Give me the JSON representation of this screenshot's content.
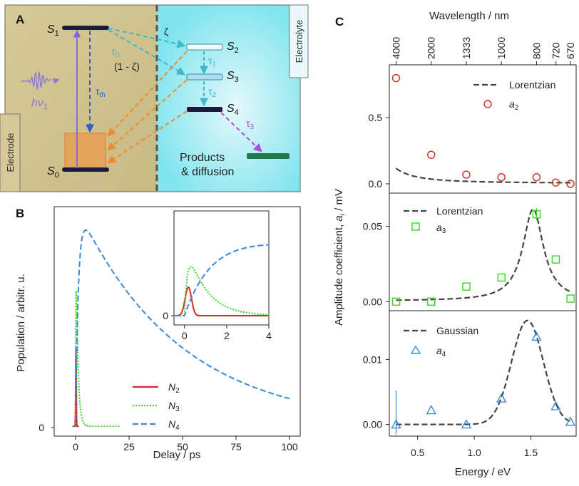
{
  "panels": {
    "a": {
      "label": "A",
      "electrode": "Electrode",
      "electrolyte": "Electrolyte",
      "states": {
        "s0": "S",
        "s0_sub": "0",
        "s1": "S",
        "s1_sub": "1",
        "s2": "S",
        "s2_sub": "2",
        "s3": "S",
        "s3_sub": "3",
        "s4": "S",
        "s4_sub": "4"
      },
      "rates": {
        "zeta": "ζ",
        "tau0": "τ",
        "tau0_sub": "0",
        "one_minus_zeta": "(1 - ζ)",
        "tau1": "τ",
        "tau1_sub": "1",
        "tau2": "τ",
        "tau2_sub": "2",
        "tau3": "τ",
        "tau3_sub": "3",
        "tau_th": "τ",
        "tau_th_sub": "th"
      },
      "photon": "hν",
      "photon_sub": "1",
      "products_line1": "Products",
      "products_line2": "& diffusion",
      "colors": {
        "electrode_bg": "#d8c998",
        "electrolyte_bg": "#7fe4ee",
        "level": "#1a1a3a",
        "s4_product": "#1e7a4a",
        "orange": "#f08a2a",
        "cyan": "#3fb8c8",
        "blue": "#2d5fd0",
        "purple": "#b04ad8",
        "pulse": "#8a7ad8"
      }
    },
    "b": {
      "label": "B",
      "xlabel": "Delay / ps",
      "ylabel": "Population / arbitr. u.",
      "xticks": [
        "0",
        "25",
        "50",
        "75",
        "100"
      ],
      "ytick_zero": "0",
      "inset_xticks": [
        "0",
        "2",
        "4"
      ],
      "inset_ytick_zero": "0",
      "legend": [
        {
          "name": "N",
          "sub": "2"
        },
        {
          "name": "N",
          "sub": "3"
        },
        {
          "name": "N",
          "sub": "4"
        }
      ]
    },
    "c": {
      "label": "C",
      "top_axis_label": "Wavelength / nm",
      "top_ticks": [
        "4000",
        "2000",
        "1333",
        "1000",
        "800",
        "720",
        "670"
      ],
      "xlabel": "Energy / eV",
      "ylabel_prefix": "Amplitude coefficient, ",
      "ylabel_var": "a",
      "ylabel_sub": "i",
      "ylabel_suffix": " / mV",
      "xticks": [
        "0.5",
        "1.0",
        "1.5"
      ],
      "sub_panels": [
        {
          "fit_label": "Lorentzian",
          "marker_label": "a",
          "marker_sub": "2",
          "yticks": [
            "0.0",
            "0.5"
          ]
        },
        {
          "fit_label": "Lorentzian",
          "marker_label": "a",
          "marker_sub": "3",
          "yticks": [
            "0.00",
            "0.05"
          ]
        },
        {
          "fit_label": "Gaussian",
          "marker_label": "a",
          "marker_sub": "4",
          "yticks": [
            "0.00",
            "0.01"
          ]
        }
      ]
    }
  },
  "chart_data": [
    {
      "type": "line",
      "title": "B",
      "xlabel": "Delay / ps",
      "ylabel": "Population / arbitr. u.",
      "xlim": [
        -10,
        105
      ],
      "ylim": [
        -0.05,
        1.12
      ],
      "series": [
        {
          "name": "N2",
          "color": "#d42a1e",
          "style": "solid",
          "model": "gaussian",
          "amplitude": 0.4,
          "center": 0.18,
          "sigma": 0.15
        },
        {
          "name": "N3",
          "color": "#3ad42a",
          "style": "dotted",
          "model": "rise-decay",
          "amplitude": 1.0,
          "peak": 0.69,
          "rise": 0.16,
          "decay": 0.9,
          "xmax": 21
        },
        {
          "name": "N4",
          "color": "#3a8ad8",
          "style": "dashed",
          "model": "rise-decay",
          "amplitude": 1.0,
          "peak": 1.0,
          "rise": 1.3,
          "decay": 48,
          "xmax": 100
        }
      ],
      "inset": {
        "xlim": [
          -0.5,
          4
        ],
        "xticks": [
          0,
          2,
          4
        ]
      }
    },
    {
      "type": "scatter",
      "title": "C (a2)",
      "xlabel": "Energy / eV",
      "ylabel": "Amplitude coefficient, ai / mV",
      "xlim": [
        0.25,
        1.9
      ],
      "ylim": [
        -0.07,
        0.9
      ],
      "x": [
        0.31,
        0.62,
        0.93,
        1.24,
        1.55,
        1.72,
        1.85
      ],
      "y": [
        0.8,
        0.22,
        0.07,
        0.05,
        0.05,
        0.01,
        0.0
      ],
      "marker_color": "#d42a1e",
      "fit": {
        "type": "Lorentzian",
        "x0": 0.0,
        "gamma": 0.12,
        "amplitude": 0.86,
        "offset": 0.005
      }
    },
    {
      "type": "scatter",
      "title": "C (a3)",
      "xlabel": "Energy / eV",
      "ylabel": "Amplitude coefficient, ai / mV",
      "xlim": [
        0.25,
        1.9
      ],
      "ylim": [
        -0.006,
        0.072
      ],
      "x": [
        0.31,
        0.62,
        0.93,
        1.24,
        1.55,
        1.72,
        1.85
      ],
      "y": [
        0.0,
        0.0,
        0.01,
        0.016,
        0.058,
        0.028,
        0.002
      ],
      "marker_color": "#3ad42a",
      "fit": {
        "type": "Lorentzian",
        "x0": 1.52,
        "gamma": 0.11,
        "amplitude": 0.061,
        "offset": 0.0005
      }
    },
    {
      "type": "scatter",
      "title": "C (a4)",
      "xlabel": "Energy / eV",
      "ylabel": "Amplitude coefficient, ai / mV",
      "xlim": [
        0.25,
        1.9
      ],
      "ylim": [
        -0.0018,
        0.0175
      ],
      "x": [
        0.31,
        0.62,
        0.93,
        1.24,
        1.55,
        1.72,
        1.85
      ],
      "y": [
        0.0,
        0.0022,
        0.0,
        0.004,
        0.0135,
        0.0028,
        0.0004
      ],
      "marker_color": "#3a8ad8",
      "fit": {
        "type": "Gaussian",
        "x0": 1.47,
        "sigma": 0.14,
        "amplitude": 0.016
      }
    }
  ]
}
